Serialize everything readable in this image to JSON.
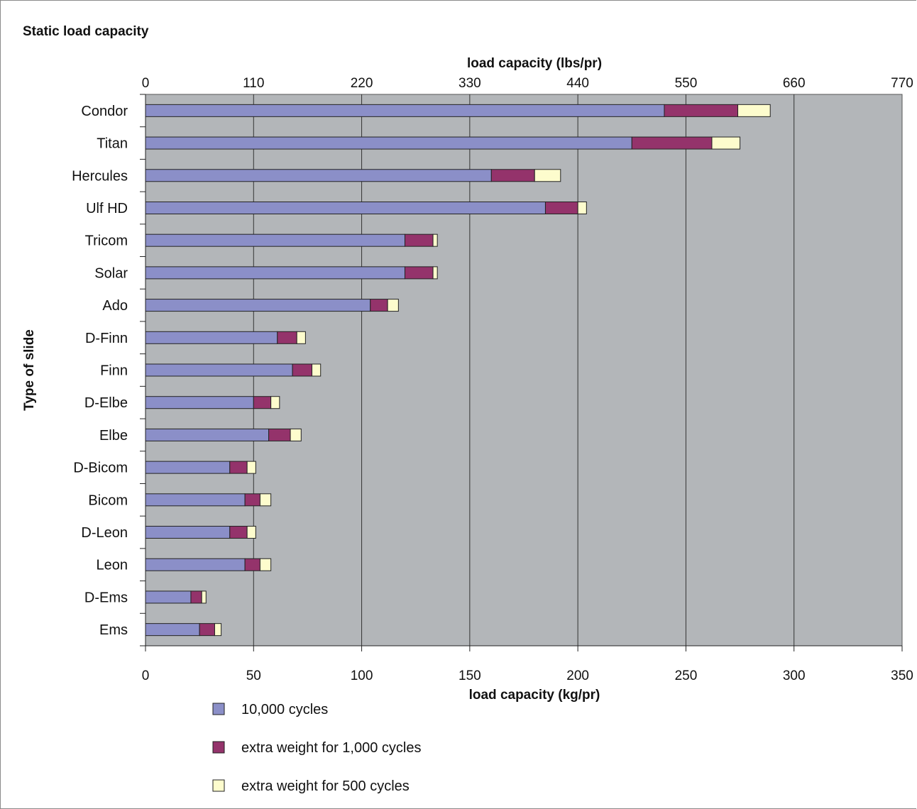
{
  "chart_data": {
    "type": "bar",
    "orientation": "horizontal",
    "stacked": true,
    "title": "Static load capacity",
    "xlabel": "load capacity (kg/pr)",
    "x2label": "load capacity (lbs/pr)",
    "ylabel": "Type of slide",
    "xlim": [
      0,
      350
    ],
    "xticks": [
      "0",
      "50",
      "100",
      "150",
      "200",
      "250",
      "300",
      "350"
    ],
    "x2ticks": [
      "0",
      "110",
      "220",
      "330",
      "440",
      "550",
      "660",
      "770"
    ],
    "grid": true,
    "legend_position": "bottom",
    "categories": [
      "Condor",
      "Titan",
      "Hercules",
      "Ulf HD",
      "Tricom",
      "Solar",
      "Ado",
      "D-Finn",
      "Finn",
      "D-Elbe",
      "Elbe",
      "D-Bicom",
      "Bicom",
      "D-Leon",
      "Leon",
      "D-Ems",
      "Ems"
    ],
    "series": [
      {
        "name": "10,000 cycles",
        "color": "#8b8fc8",
        "values": [
          240,
          225,
          160,
          185,
          120,
          120,
          104,
          61,
          68,
          50,
          57,
          39,
          46,
          39,
          46,
          21,
          25
        ]
      },
      {
        "name": "extra weight for 1,000 cycles",
        "color": "#94336b",
        "values": [
          34,
          37,
          20,
          15,
          13,
          13,
          8,
          9,
          9,
          8,
          10,
          8,
          7,
          8,
          7,
          5,
          7
        ]
      },
      {
        "name": "extra weight for 500 cycles",
        "color": "#fdfccd",
        "values": [
          15,
          13,
          12,
          4,
          2,
          2,
          5,
          4,
          4,
          4,
          5,
          4,
          5,
          4,
          5,
          2,
          3
        ]
      }
    ],
    "plot_background": "#b3b6b9"
  }
}
